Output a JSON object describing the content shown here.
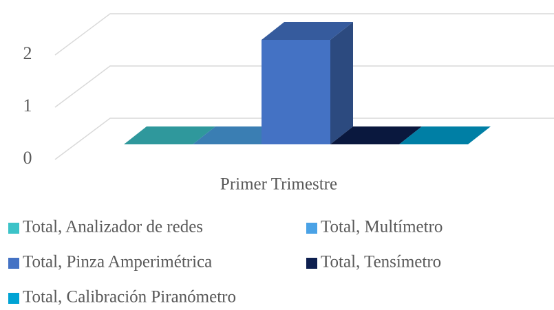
{
  "chart_data": {
    "type": "bar3d",
    "categories": [
      "Primer Trimestre"
    ],
    "series": [
      {
        "name": "Total, Analizador de redes",
        "color": "#3cc3c8",
        "values": [
          0
        ]
      },
      {
        "name": "Total, Multímetro",
        "color": "#4aa2e6",
        "values": [
          0
        ]
      },
      {
        "name": "Total, Pinza Amperimétrica",
        "color": "#4472c4",
        "values": [
          2
        ]
      },
      {
        "name": "Total, Tensímetro",
        "color": "#0d1f4f",
        "values": [
          0
        ]
      },
      {
        "name": "Total, Calibración Piranómetro",
        "color": "#00a3d4",
        "values": [
          0
        ]
      }
    ],
    "ylim": [
      0,
      2
    ],
    "yticks": [
      0,
      1,
      2
    ],
    "grid": true,
    "legend": "bottom"
  }
}
